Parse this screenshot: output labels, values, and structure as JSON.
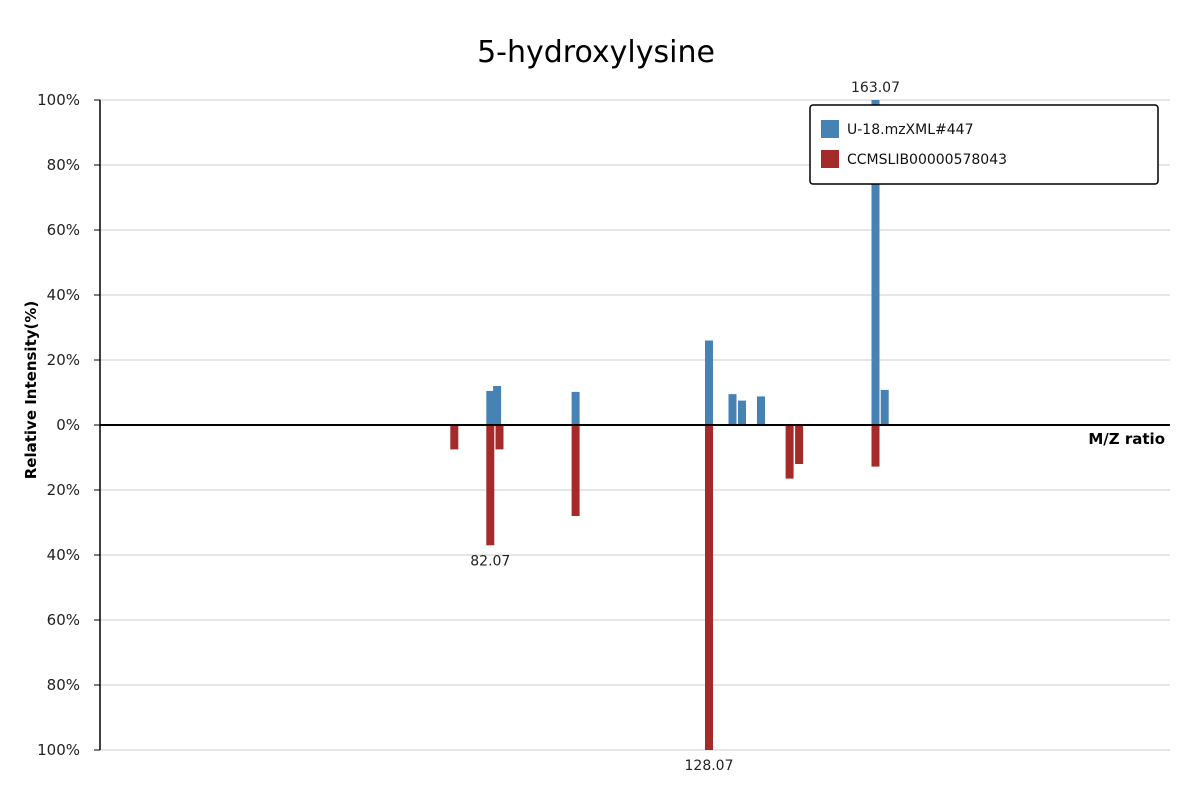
{
  "chart_data": {
    "type": "bar",
    "subtype": "mirror-spectrum",
    "title": "5-hydroxylysine",
    "xlabel": "M/Z ratio",
    "ylabel": "Relative Intensity(%)",
    "ylim": [
      -100,
      100
    ],
    "y_ticks": [
      "100%",
      "80%",
      "60%",
      "40%",
      "20%",
      "0%",
      "20%",
      "40%",
      "60%",
      "80%",
      "100%"
    ],
    "grid": true,
    "legend_position": "top-right",
    "series": [
      {
        "name": "U-18.mzXML#447",
        "color": "#4682B4",
        "direction": "up",
        "points": [
          {
            "mz": 82.07,
            "intensity": 10.5
          },
          {
            "mz": 83.5,
            "intensity": 12.0
          },
          {
            "mz": 100.0,
            "intensity": 10.2
          },
          {
            "mz": 128.07,
            "intensity": 26.0
          },
          {
            "mz": 133.0,
            "intensity": 9.5
          },
          {
            "mz": 135.0,
            "intensity": 7.5
          },
          {
            "mz": 139.0,
            "intensity": 8.8
          },
          {
            "mz": 163.07,
            "intensity": 100.0
          },
          {
            "mz": 165.0,
            "intensity": 10.8
          }
        ],
        "labeled_peak": "163.07"
      },
      {
        "name": "CCMSLIB00000578043",
        "color": "#A52A2A",
        "direction": "down",
        "points": [
          {
            "mz": 74.5,
            "intensity": 7.5
          },
          {
            "mz": 82.07,
            "intensity": 37.0
          },
          {
            "mz": 84.0,
            "intensity": 7.5
          },
          {
            "mz": 100.0,
            "intensity": 28.0
          },
          {
            "mz": 128.07,
            "intensity": 100.0
          },
          {
            "mz": 145.0,
            "intensity": 16.5
          },
          {
            "mz": 147.0,
            "intensity": 12.0
          },
          {
            "mz": 163.07,
            "intensity": 12.8
          }
        ],
        "labeled_peaks": [
          "82.07",
          "128.07"
        ]
      }
    ]
  }
}
